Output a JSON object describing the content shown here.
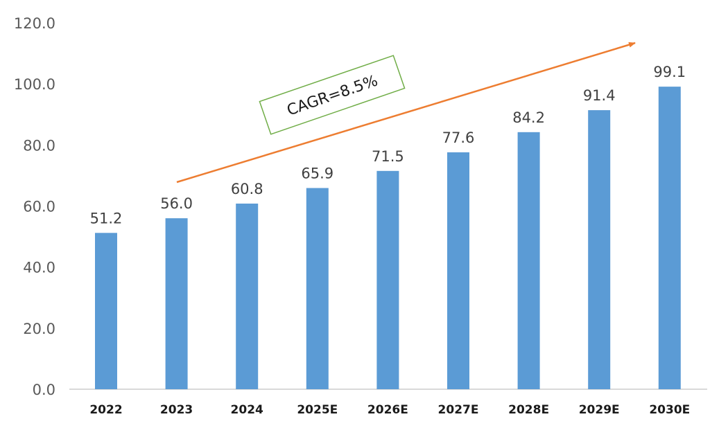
{
  "chart_data": {
    "type": "bar",
    "categories": [
      "2022",
      "2023",
      "2024",
      "2025E",
      "2026E",
      "2027E",
      "2028E",
      "2029E",
      "2030E"
    ],
    "values": [
      51.2,
      56.0,
      60.8,
      65.9,
      71.5,
      77.6,
      84.2,
      91.4,
      99.1
    ],
    "data_labels": [
      "51.2",
      "56.0",
      "60.8",
      "65.9",
      "71.5",
      "77.6",
      "84.2",
      "91.4",
      "99.1"
    ],
    "yticks": [
      "0.0",
      "20.0",
      "40.0",
      "60.0",
      "80.0",
      "100.0",
      "120.0"
    ],
    "ylim": [
      0,
      120
    ],
    "title": "",
    "xlabel": "",
    "ylabel": "",
    "grid": false,
    "legend": "none",
    "annotation": {
      "text": "CAGR=8.5%",
      "arrow_color": "#ED7D31",
      "box_border_color": "#70AD47"
    },
    "bar_color": "#5B9BD5",
    "axis_color": "#D9D9D9"
  }
}
